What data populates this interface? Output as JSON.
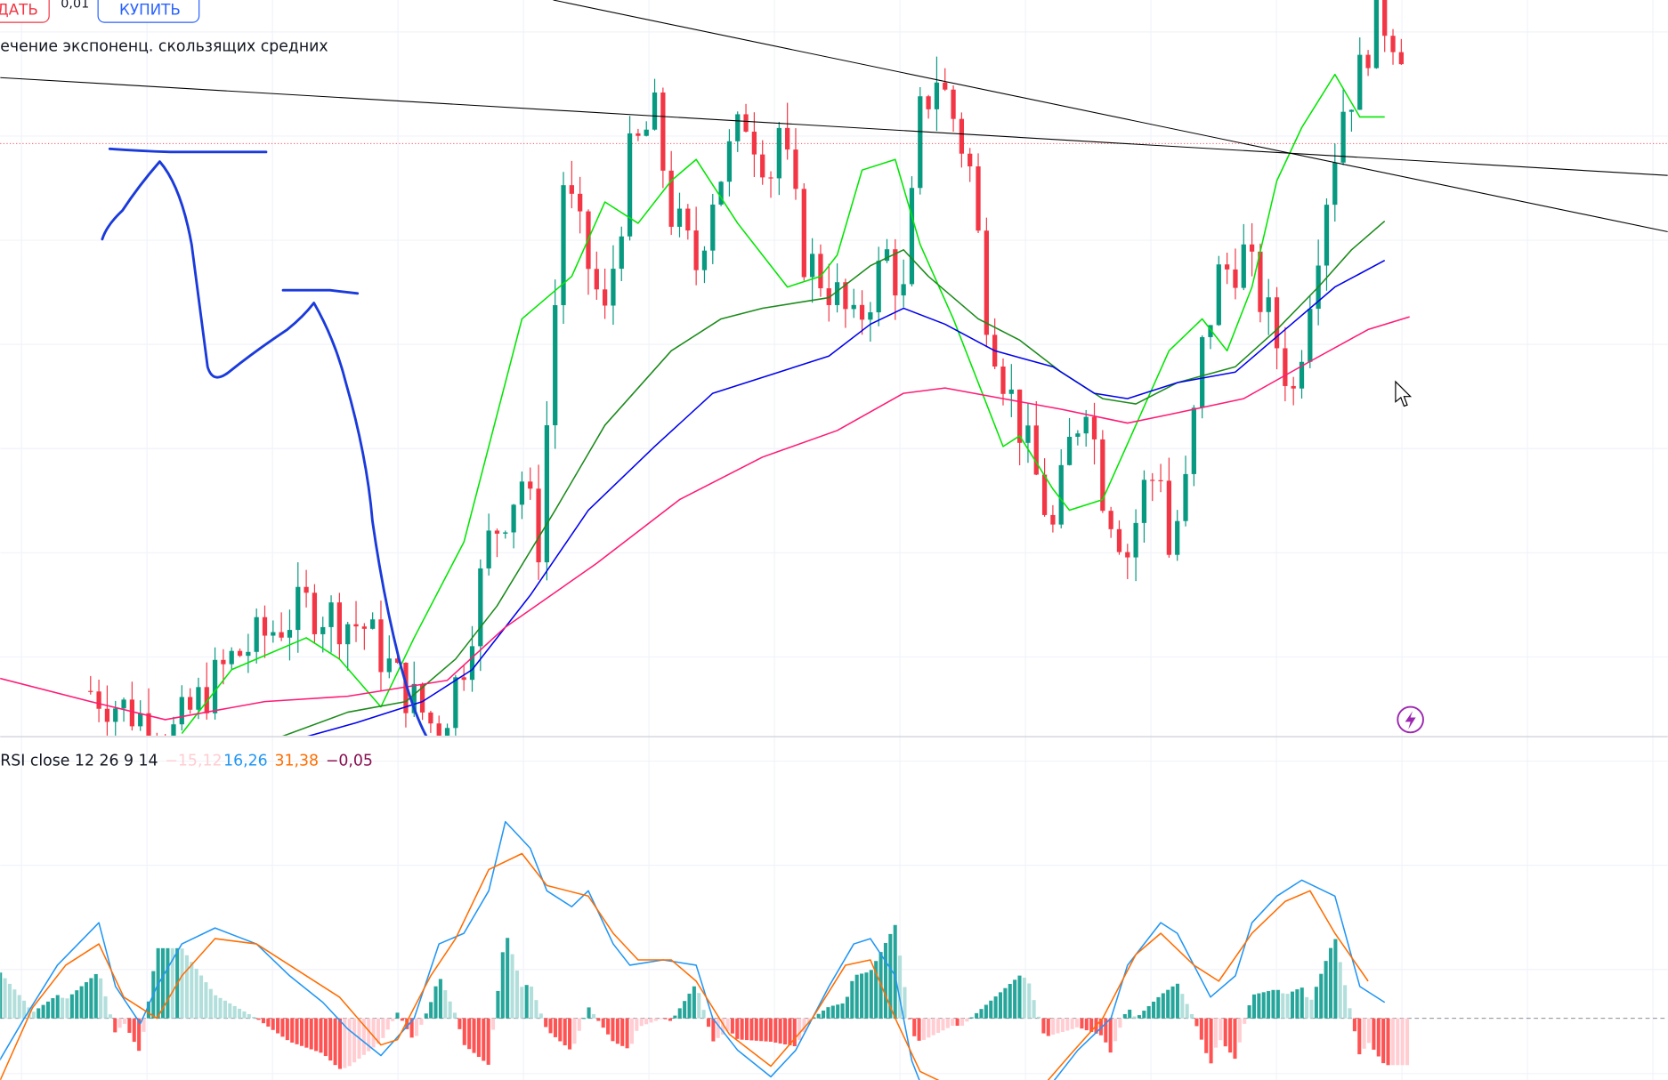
{
  "toolbar": {
    "sell_label": "ДАТЬ",
    "spread": "0,01",
    "buy_label": "КУПИТЬ"
  },
  "price_pane": {
    "legend": "ечение экспоненц. скользящих средних",
    "colors": {
      "up": "#089981",
      "down": "#f23645",
      "ema_fast": "#00e600",
      "ema_mid": "#1b8a1b",
      "ema_slow": "#0000ee",
      "ema_long": "#ff1a75",
      "drawing": "#1a3adb"
    }
  },
  "indicator_pane": {
    "legend_name": "RSI close 12 26 9 14",
    "values": [
      "−15,12",
      "16,26",
      "31,38",
      "−0,05"
    ],
    "value_colors": [
      "#ffcdd2",
      "#2196f3",
      "#ff6d00",
      "#880e4f"
    ]
  },
  "chart_data": {
    "type": "candlestick",
    "price_path": [
      [
        0,
        50
      ],
      [
        10,
        10
      ],
      [
        17,
        80
      ],
      [
        26,
        130
      ],
      [
        33,
        110
      ],
      [
        37,
        60
      ],
      [
        42,
        10
      ],
      [
        45,
        80
      ],
      [
        48,
        190
      ],
      [
        52,
        250
      ],
      [
        54,
        190
      ],
      [
        55,
        300
      ],
      [
        57,
        530
      ],
      [
        60,
        450
      ],
      [
        62,
        400
      ],
      [
        65,
        550
      ],
      [
        68,
        590
      ],
      [
        70,
        500
      ],
      [
        73,
        450
      ],
      [
        75,
        520
      ],
      [
        79,
        590
      ],
      [
        82,
        540
      ],
      [
        83,
        580
      ],
      [
        86,
        460
      ],
      [
        90,
        420
      ],
      [
        92,
        390
      ],
      [
        96,
        460
      ],
      [
        98,
        420
      ],
      [
        100,
        590
      ],
      [
        102,
        630
      ],
      [
        104,
        590
      ],
      [
        106,
        540
      ],
      [
        108,
        410
      ],
      [
        110,
        350
      ],
      [
        112,
        300
      ],
      [
        116,
        200
      ],
      [
        118,
        280
      ],
      [
        120,
        330
      ],
      [
        122,
        240
      ],
      [
        125,
        180
      ],
      [
        127,
        240
      ],
      [
        129,
        260
      ],
      [
        130,
        180
      ],
      [
        132,
        240
      ],
      [
        134,
        370
      ],
      [
        136,
        440
      ],
      [
        139,
        460
      ],
      [
        142,
        400
      ],
      [
        145,
        330
      ],
      [
        147,
        430
      ],
      [
        149,
        520
      ],
      [
        151,
        600
      ],
      [
        153,
        630
      ],
      [
        155,
        690
      ],
      [
        157,
        670
      ],
      [
        160,
        640
      ],
      [
        161,
        530
      ],
      [
        162,
        530
      ],
      [
        164,
        600
      ],
      [
        166,
        575
      ]
    ],
    "ema_fast": [
      [
        11,
        10
      ],
      [
        17,
        70
      ],
      [
        26,
        100
      ],
      [
        30,
        80
      ],
      [
        35,
        35
      ],
      [
        39,
        100
      ],
      [
        45,
        190
      ],
      [
        48,
        280
      ],
      [
        52,
        400
      ],
      [
        58,
        440
      ],
      [
        62,
        510
      ],
      [
        66,
        490
      ],
      [
        70,
        530
      ],
      [
        73,
        550
      ],
      [
        78,
        490
      ],
      [
        84,
        430
      ],
      [
        88,
        440
      ],
      [
        90,
        460
      ],
      [
        93,
        540
      ],
      [
        97,
        550
      ],
      [
        100,
        470
      ],
      [
        104,
        400
      ],
      [
        108,
        320
      ],
      [
        110,
        280
      ],
      [
        112,
        290
      ],
      [
        116,
        240
      ],
      [
        118,
        220
      ],
      [
        122,
        230
      ],
      [
        126,
        300
      ],
      [
        130,
        370
      ],
      [
        134,
        400
      ],
      [
        137,
        370
      ],
      [
        140,
        430
      ],
      [
        143,
        530
      ],
      [
        146,
        580
      ],
      [
        150,
        630
      ],
      [
        153,
        590
      ],
      [
        156,
        590
      ]
    ],
    "ema_mid": [
      [
        23,
        7
      ],
      [
        31,
        30
      ],
      [
        38,
        40
      ],
      [
        44,
        80
      ],
      [
        49,
        130
      ],
      [
        56,
        220
      ],
      [
        62,
        300
      ],
      [
        70,
        370
      ],
      [
        76,
        400
      ],
      [
        81,
        410
      ],
      [
        89,
        420
      ],
      [
        94,
        450
      ],
      [
        98,
        465
      ],
      [
        101,
        440
      ],
      [
        107,
        400
      ],
      [
        112,
        380
      ],
      [
        117,
        350
      ],
      [
        122,
        325
      ],
      [
        126,
        320
      ],
      [
        131,
        340
      ],
      [
        138,
        355
      ],
      [
        143,
        390
      ],
      [
        148,
        430
      ],
      [
        152,
        465
      ],
      [
        156,
        492
      ]
    ],
    "ema_slow": [
      [
        26,
        7
      ],
      [
        32,
        20
      ],
      [
        40,
        40
      ],
      [
        46,
        70
      ],
      [
        53,
        140
      ],
      [
        60,
        220
      ],
      [
        68,
        280
      ],
      [
        75,
        330
      ],
      [
        83,
        350
      ],
      [
        89,
        365
      ],
      [
        94,
        395
      ],
      [
        98,
        410
      ],
      [
        103,
        395
      ],
      [
        109,
        370
      ],
      [
        116,
        355
      ],
      [
        121,
        330
      ],
      [
        125,
        325
      ],
      [
        131,
        340
      ],
      [
        138,
        350
      ],
      [
        144,
        390
      ],
      [
        150,
        430
      ],
      [
        156,
        455
      ]
    ],
    "ema_long": [
      [
        -11,
        62
      ],
      [
        0,
        40
      ],
      [
        9,
        23
      ],
      [
        21,
        40
      ],
      [
        31,
        45
      ],
      [
        43,
        60
      ],
      [
        50,
        110
      ],
      [
        61,
        170
      ],
      [
        71,
        230
      ],
      [
        81,
        270
      ],
      [
        90,
        295
      ],
      [
        98,
        330
      ],
      [
        103,
        335
      ],
      [
        110,
        325
      ],
      [
        117,
        315
      ],
      [
        125,
        302
      ],
      [
        130,
        310
      ],
      [
        139,
        325
      ],
      [
        147,
        360
      ],
      [
        154,
        390
      ],
      [
        159,
        402
      ]
    ],
    "macd": [
      [
        -11,
        -8
      ],
      [
        -8,
        0
      ],
      [
        -4,
        10
      ],
      [
        1,
        18
      ],
      [
        3,
        6
      ],
      [
        6,
        -1
      ],
      [
        8,
        6
      ],
      [
        11,
        14
      ],
      [
        15,
        17
      ],
      [
        20,
        14
      ],
      [
        24,
        8
      ],
      [
        28,
        3
      ],
      [
        31,
        -2
      ],
      [
        35,
        -7
      ],
      [
        39,
        0
      ],
      [
        42,
        14
      ],
      [
        45,
        16
      ],
      [
        48,
        24
      ],
      [
        50,
        37
      ],
      [
        53,
        32
      ],
      [
        55,
        24
      ],
      [
        58,
        21
      ],
      [
        60,
        24
      ],
      [
        63,
        14
      ],
      [
        65,
        10
      ],
      [
        69,
        11
      ],
      [
        73,
        10
      ],
      [
        75,
        0
      ],
      [
        78,
        -6
      ],
      [
        82,
        -11
      ],
      [
        85,
        -6
      ],
      [
        89,
        6
      ],
      [
        92,
        14
      ],
      [
        94,
        15
      ],
      [
        97,
        8
      ],
      [
        99,
        -8
      ],
      [
        100,
        -12
      ],
      [
        105,
        -14
      ],
      [
        112,
        -12
      ],
      [
        115,
        -14
      ],
      [
        119,
        -6
      ],
      [
        123,
        0
      ],
      [
        125,
        10
      ],
      [
        129,
        18
      ],
      [
        131,
        16
      ],
      [
        135,
        4
      ],
      [
        138,
        8
      ],
      [
        140,
        18
      ],
      [
        143,
        23
      ],
      [
        146,
        26
      ],
      [
        150,
        23
      ],
      [
        153,
        6
      ],
      [
        156,
        3
      ]
    ],
    "signal": [
      [
        -11,
        -12
      ],
      [
        -7,
        2
      ],
      [
        -3,
        10
      ],
      [
        1,
        14
      ],
      [
        4,
        4
      ],
      [
        8,
        0
      ],
      [
        11,
        8
      ],
      [
        15,
        15
      ],
      [
        20,
        14
      ],
      [
        25,
        9
      ],
      [
        30,
        4
      ],
      [
        35,
        -5
      ],
      [
        37,
        -4
      ],
      [
        41,
        8
      ],
      [
        44,
        15
      ],
      [
        48,
        28
      ],
      [
        52,
        31
      ],
      [
        55,
        25
      ],
      [
        60,
        23
      ],
      [
        63,
        16
      ],
      [
        66,
        11
      ],
      [
        70,
        11
      ],
      [
        73,
        7
      ],
      [
        77,
        -3
      ],
      [
        82,
        -9
      ],
      [
        87,
        0
      ],
      [
        91,
        10
      ],
      [
        94,
        11
      ],
      [
        97,
        0
      ],
      [
        100,
        -10
      ],
      [
        104,
        -13
      ],
      [
        113,
        -16
      ],
      [
        118,
        -7
      ],
      [
        122,
        0
      ],
      [
        126,
        12
      ],
      [
        129,
        16
      ],
      [
        133,
        10
      ],
      [
        136,
        7
      ],
      [
        140,
        16
      ],
      [
        144,
        22
      ],
      [
        147,
        24
      ],
      [
        150,
        16
      ],
      [
        154,
        7
      ]
    ]
  }
}
